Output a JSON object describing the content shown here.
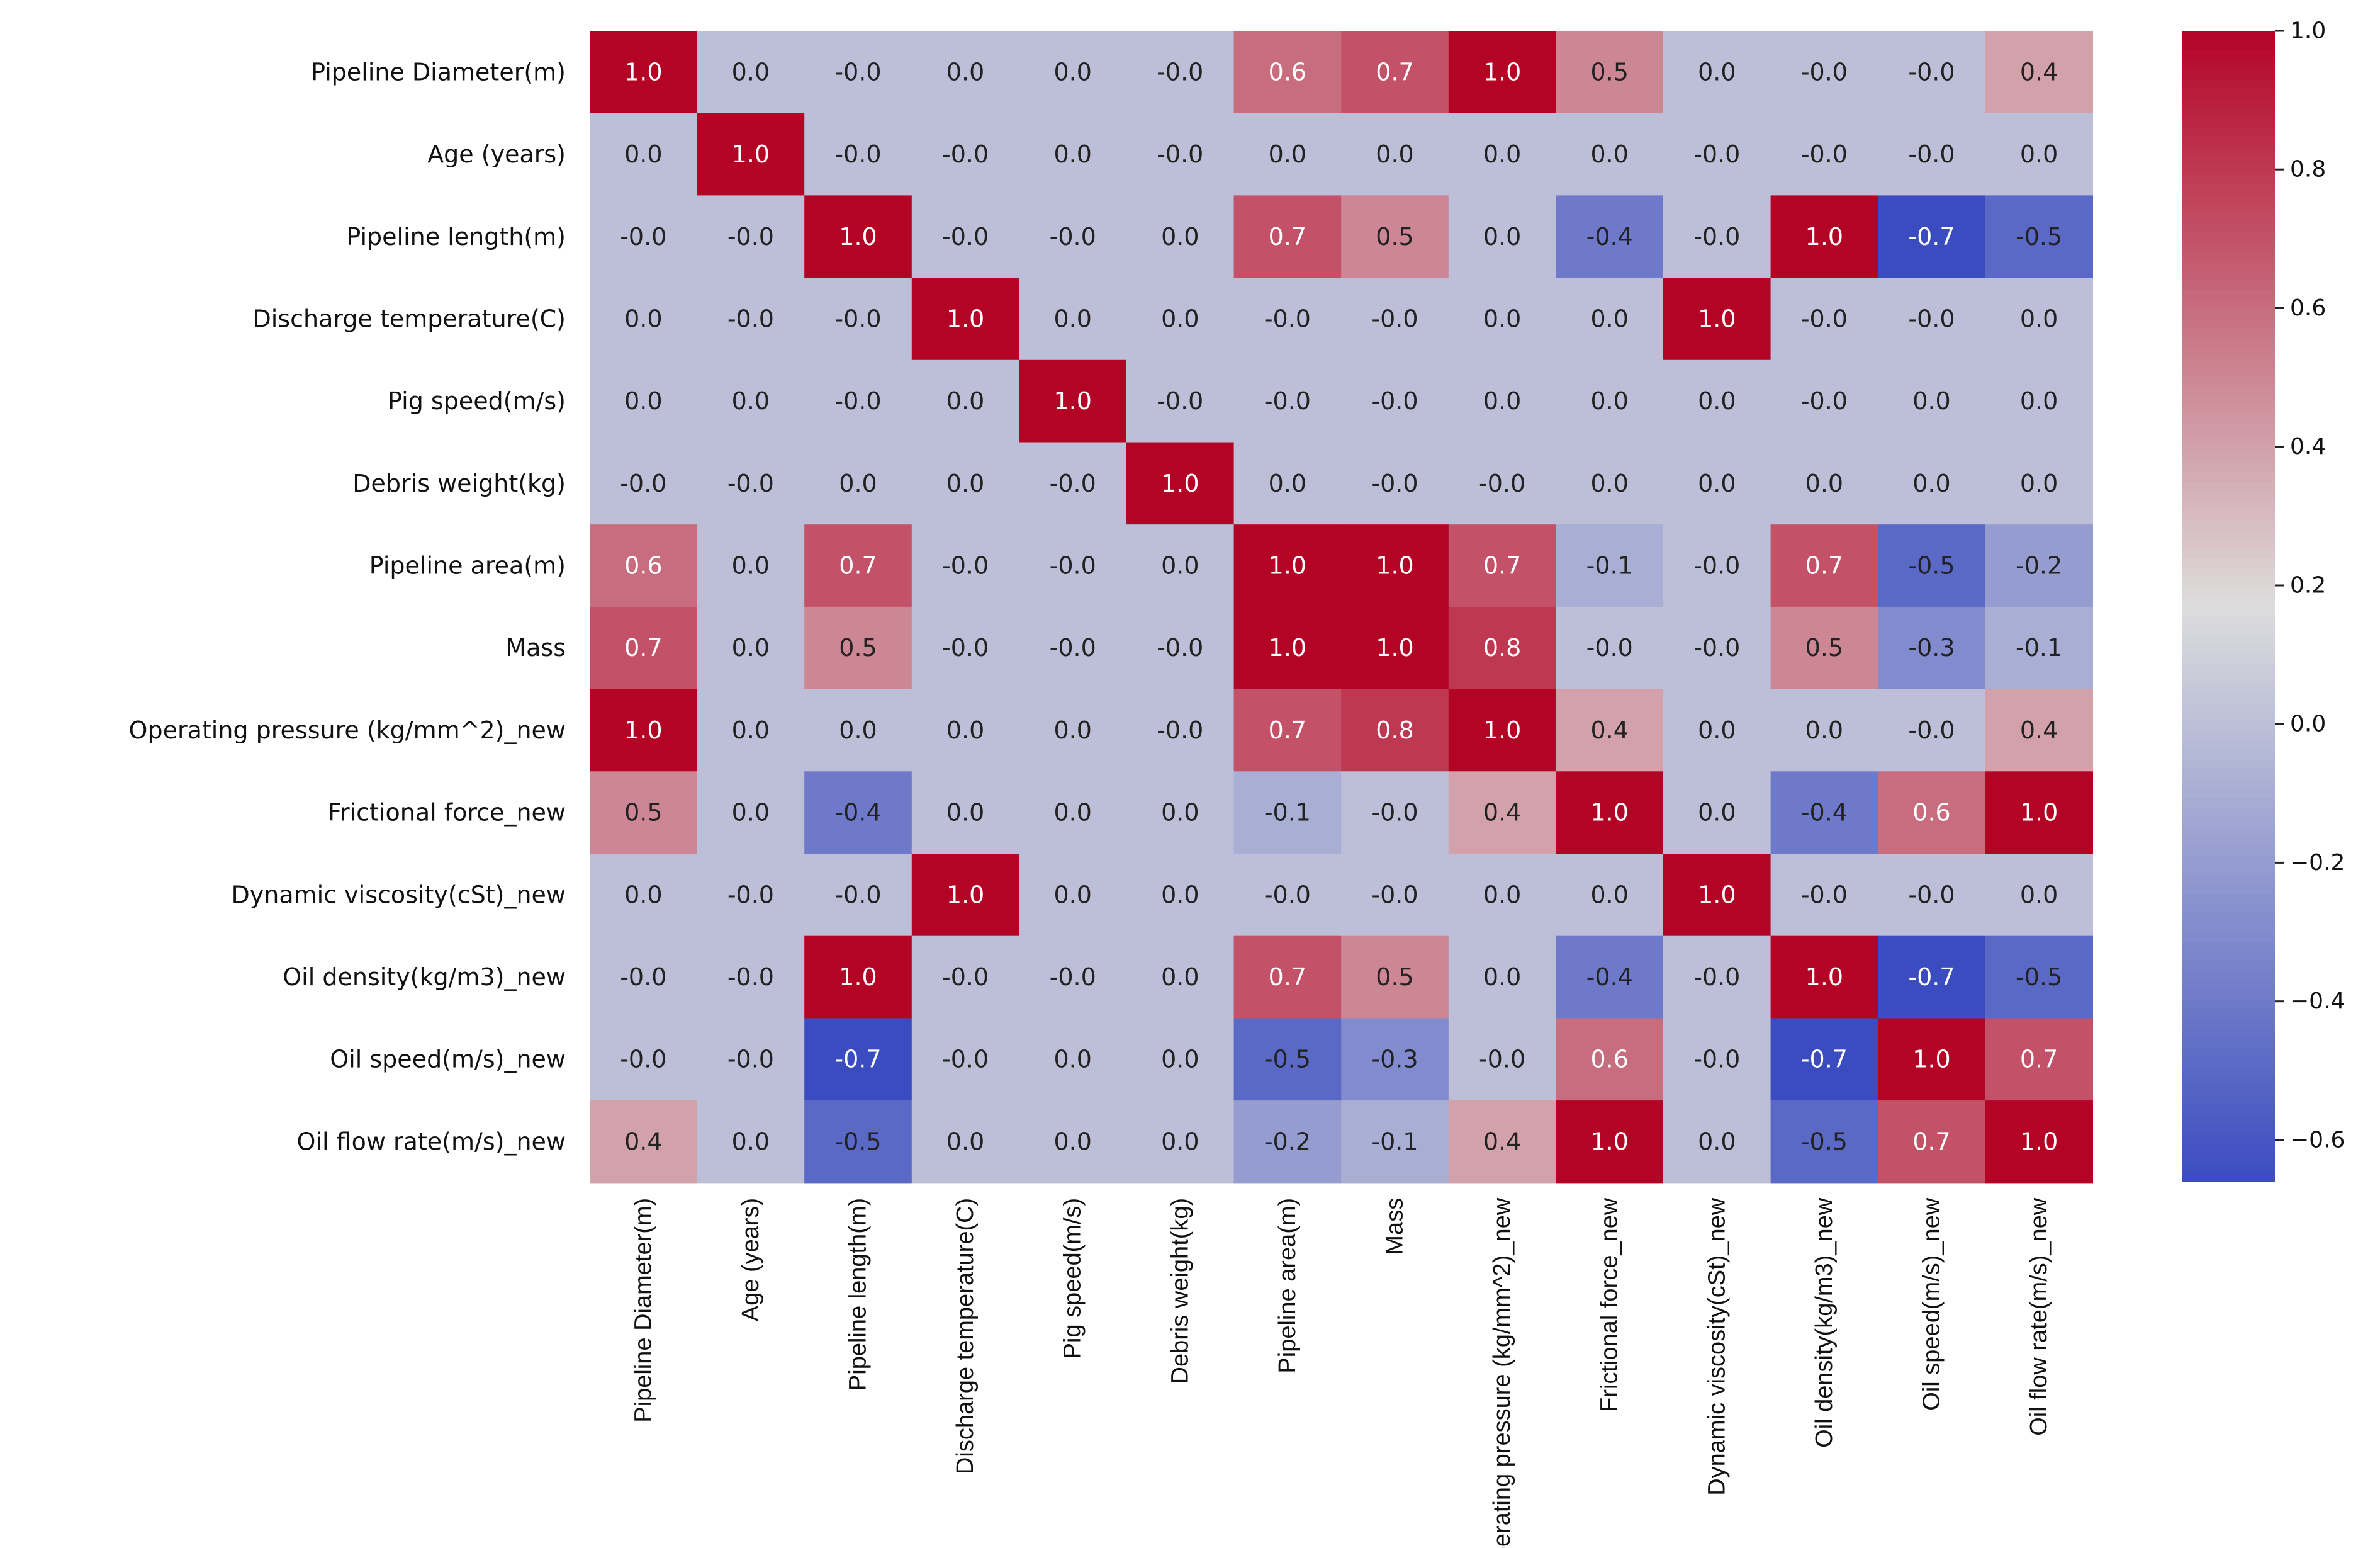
{
  "chart_data": {
    "type": "heatmap",
    "title": "",
    "labels": [
      "Pipeline Diameter(m)",
      "Age (years)",
      "Pipeline length(m)",
      "Discharge temperature(C)",
      "Pig speed(m/s)",
      "Debris weight(kg)",
      "Pipeline area(m)",
      "Mass",
      "Operating pressure (kg/mm^2)_new",
      "Frictional force_new",
      "Dynamic viscosity(cSt)_new",
      "Oil density(kg/m3)_new",
      "Oil speed(m/s)_new",
      "Oil flow rate(m/s)_new"
    ],
    "matrix": [
      [
        "1.0",
        "0.0",
        "-0.0",
        "0.0",
        "0.0",
        "-0.0",
        "0.6",
        "0.7",
        "1.0",
        "0.5",
        "0.0",
        "-0.0",
        "-0.0",
        "0.4"
      ],
      [
        "0.0",
        "1.0",
        "-0.0",
        "-0.0",
        "0.0",
        "-0.0",
        "0.0",
        "0.0",
        "0.0",
        "0.0",
        "-0.0",
        "-0.0",
        "-0.0",
        "0.0"
      ],
      [
        "-0.0",
        "-0.0",
        "1.0",
        "-0.0",
        "-0.0",
        "0.0",
        "0.7",
        "0.5",
        "0.0",
        "-0.4",
        "-0.0",
        "1.0",
        "-0.7",
        "-0.5"
      ],
      [
        "0.0",
        "-0.0",
        "-0.0",
        "1.0",
        "0.0",
        "0.0",
        "-0.0",
        "-0.0",
        "0.0",
        "0.0",
        "1.0",
        "-0.0",
        "-0.0",
        "0.0"
      ],
      [
        "0.0",
        "0.0",
        "-0.0",
        "0.0",
        "1.0",
        "-0.0",
        "-0.0",
        "-0.0",
        "0.0",
        "0.0",
        "0.0",
        "-0.0",
        "0.0",
        "0.0"
      ],
      [
        "-0.0",
        "-0.0",
        "0.0",
        "0.0",
        "-0.0",
        "1.0",
        "0.0",
        "-0.0",
        "-0.0",
        "0.0",
        "0.0",
        "0.0",
        "0.0",
        "0.0"
      ],
      [
        "0.6",
        "0.0",
        "0.7",
        "-0.0",
        "-0.0",
        "0.0",
        "1.0",
        "1.0",
        "0.7",
        "-0.1",
        "-0.0",
        "0.7",
        "-0.5",
        "-0.2"
      ],
      [
        "0.7",
        "0.0",
        "0.5",
        "-0.0",
        "-0.0",
        "-0.0",
        "1.0",
        "1.0",
        "0.8",
        "-0.0",
        "-0.0",
        "0.5",
        "-0.3",
        "-0.1"
      ],
      [
        "1.0",
        "0.0",
        "0.0",
        "0.0",
        "0.0",
        "-0.0",
        "0.7",
        "0.8",
        "1.0",
        "0.4",
        "0.0",
        "0.0",
        "-0.0",
        "0.4"
      ],
      [
        "0.5",
        "0.0",
        "-0.4",
        "0.0",
        "0.0",
        "0.0",
        "-0.1",
        "-0.0",
        "0.4",
        "1.0",
        "0.0",
        "-0.4",
        "0.6",
        "1.0"
      ],
      [
        "0.0",
        "-0.0",
        "-0.0",
        "1.0",
        "0.0",
        "0.0",
        "-0.0",
        "-0.0",
        "0.0",
        "0.0",
        "1.0",
        "-0.0",
        "-0.0",
        "0.0"
      ],
      [
        "-0.0",
        "-0.0",
        "1.0",
        "-0.0",
        "-0.0",
        "0.0",
        "0.7",
        "0.5",
        "0.0",
        "-0.4",
        "-0.0",
        "1.0",
        "-0.7",
        "-0.5"
      ],
      [
        "-0.0",
        "-0.0",
        "-0.7",
        "-0.0",
        "0.0",
        "0.0",
        "-0.5",
        "-0.3",
        "-0.0",
        "0.6",
        "-0.0",
        "-0.7",
        "1.0",
        "0.7"
      ],
      [
        "0.4",
        "0.0",
        "-0.5",
        "0.0",
        "0.0",
        "0.0",
        "-0.2",
        "-0.1",
        "0.4",
        "1.0",
        "0.0",
        "-0.5",
        "0.7",
        "1.0"
      ]
    ],
    "colormap": "coolwarm",
    "vmin": -0.66,
    "vmax": 1.0,
    "colorbar_ticks": [
      {
        "value": 1.0,
        "label": "1.0"
      },
      {
        "value": 0.8,
        "label": "0.8"
      },
      {
        "value": 0.6,
        "label": "0.6"
      },
      {
        "value": 0.4,
        "label": "0.4"
      },
      {
        "value": 0.2,
        "label": "0.2"
      },
      {
        "value": 0.0,
        "label": "0.0"
      },
      {
        "value": -0.2,
        "label": "−0.2"
      },
      {
        "value": -0.4,
        "label": "−0.4"
      },
      {
        "value": -0.6,
        "label": "−0.6"
      }
    ],
    "colors": {
      "low": "#3b4cc0",
      "mid": "#dddddd",
      "high": "#b40426",
      "text_light": "#ffffff",
      "text_dark": "#222222"
    }
  }
}
